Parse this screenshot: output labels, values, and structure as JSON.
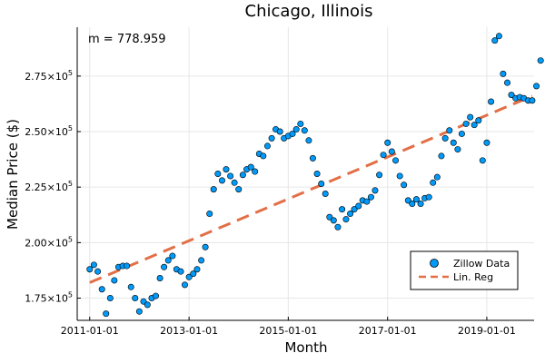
{
  "chart_data": {
    "type": "scatter",
    "title": "Chicago, Illinois",
    "xlabel": "Month",
    "ylabel": "Median Price ($)",
    "annotation": "m = 778.959",
    "grid": true,
    "legend_position": "bottom-right",
    "xlim": [
      "2010-10-01",
      "2019-12-15"
    ],
    "ylim": [
      165000,
      297000
    ],
    "x_ticks": [
      "2011-01-01",
      "2013-01-01",
      "2015-01-01",
      "2017-01-01",
      "2019-01-01"
    ],
    "y_ticks": [
      {
        "value": 175000,
        "mantissa": "1.75",
        "exponent": "5"
      },
      {
        "value": 200000,
        "mantissa": "2.00",
        "exponent": "5"
      },
      {
        "value": 225000,
        "mantissa": "2.25",
        "exponent": "5"
      },
      {
        "value": 250000,
        "mantissa": "2.50",
        "exponent": "5"
      },
      {
        "value": 275000,
        "mantissa": "2.75",
        "exponent": "5"
      }
    ],
    "series": [
      {
        "name": "Zillow Data",
        "kind": "scatter",
        "color": "#009af9",
        "start": "2011-01-01",
        "frequency": "monthly",
        "values": [
          188000,
          190000,
          187000,
          179000,
          168000,
          175000,
          183000,
          189000,
          189500,
          189500,
          180000,
          175000,
          169000,
          173500,
          172000,
          175000,
          176000,
          184000,
          189000,
          192000,
          194000,
          188000,
          187000,
          181000,
          184500,
          186000,
          188000,
          192000,
          198000,
          213000,
          224000,
          231000,
          228000,
          233000,
          230000,
          227000,
          224000,
          230500,
          233000,
          234000,
          232000,
          240000,
          239000,
          243500,
          247000,
          251000,
          250000,
          247000,
          248000,
          249000,
          251000,
          253500,
          250500,
          246000,
          238000,
          231000,
          226500,
          222000,
          211500,
          210000,
          207000,
          215000,
          210500,
          213000,
          215000,
          216500,
          219000,
          218500,
          220500,
          223500,
          230500,
          239500,
          245000,
          241000,
          237000,
          230000,
          226000,
          219000,
          217500,
          219500,
          217500,
          220000,
          220500,
          227000,
          229500,
          239000,
          247000,
          250500,
          245000,
          242000,
          249000,
          253500,
          256500,
          253000,
          255000,
          237000,
          245000,
          263500,
          291000,
          293000,
          276000,
          272000,
          266500,
          265000,
          265500,
          265000,
          264000,
          264000,
          270500,
          282000
        ]
      },
      {
        "name": "Lin. Reg",
        "kind": "line",
        "color": "#e26f46",
        "style": "dashed",
        "x": [
          "2011-01-01",
          "2019-12-01"
        ],
        "y": [
          182000,
          266000
        ]
      }
    ]
  }
}
